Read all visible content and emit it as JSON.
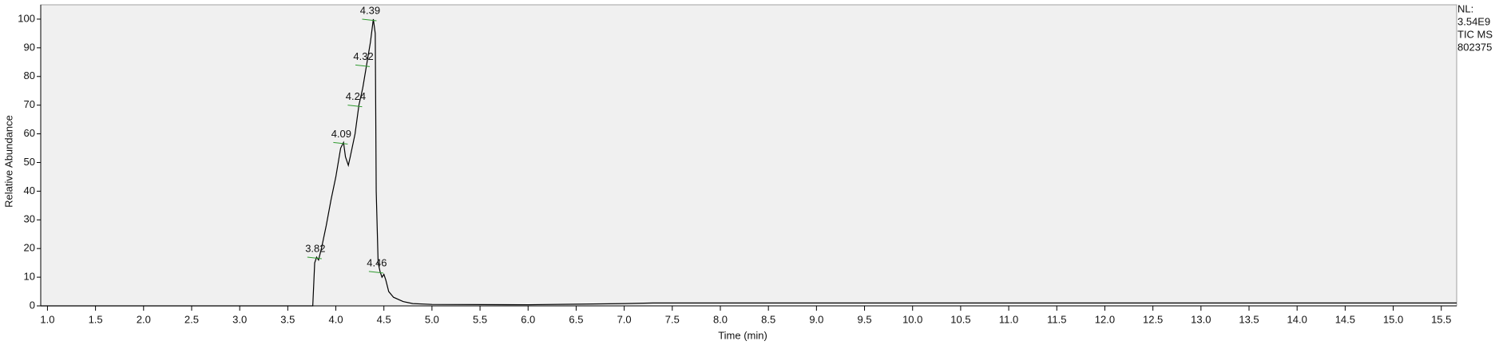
{
  "chart_data": {
    "type": "line",
    "x_label": "Time (min)",
    "y_label": "Relative Abundance",
    "info": [
      "NL:",
      "3.54E9",
      "TIC  MS",
      "802375"
    ],
    "xlim": [
      0.93,
      15.66
    ],
    "ylim": [
      0,
      105
    ],
    "xticks": [
      {
        "value": 1.0,
        "label": "1.0"
      },
      {
        "value": 1.5,
        "label": "1.5"
      },
      {
        "value": 2.0,
        "label": "2.0"
      },
      {
        "value": 2.5,
        "label": "2.5"
      },
      {
        "value": 3.0,
        "label": "3.0"
      },
      {
        "value": 3.5,
        "label": "3.5"
      },
      {
        "value": 4.0,
        "label": "4.0"
      },
      {
        "value": 4.5,
        "label": "4.5"
      },
      {
        "value": 5.0,
        "label": "5.0"
      },
      {
        "value": 5.5,
        "label": "5.5"
      },
      {
        "value": 6.0,
        "label": "6.0"
      },
      {
        "value": 6.5,
        "label": "6.5"
      },
      {
        "value": 7.0,
        "label": "7.0"
      },
      {
        "value": 7.5,
        "label": "7.5"
      },
      {
        "value": 8.0,
        "label": "8.0"
      },
      {
        "value": 8.5,
        "label": "8.5"
      },
      {
        "value": 9.0,
        "label": "9.0"
      },
      {
        "value": 9.5,
        "label": "9.5"
      },
      {
        "value": 10.0,
        "label": "10.0"
      },
      {
        "value": 10.5,
        "label": "10.5"
      },
      {
        "value": 11.0,
        "label": "11.0"
      },
      {
        "value": 11.5,
        "label": "11.5"
      },
      {
        "value": 12.0,
        "label": "12.0"
      },
      {
        "value": 12.5,
        "label": "12.5"
      },
      {
        "value": 13.0,
        "label": "13.0"
      },
      {
        "value": 13.5,
        "label": "13.5"
      },
      {
        "value": 14.0,
        "label": "14.0"
      },
      {
        "value": 14.5,
        "label": "14.5"
      },
      {
        "value": 15.0,
        "label": "15.0"
      },
      {
        "value": 15.5,
        "label": "15.5"
      }
    ],
    "yticks": [
      0,
      10,
      20,
      30,
      40,
      50,
      60,
      70,
      80,
      90,
      100
    ],
    "color": "#000000",
    "x": [
      0.93,
      3.0,
      3.76,
      3.78,
      3.8,
      3.82,
      3.85,
      3.9,
      3.95,
      4.0,
      4.05,
      4.08,
      4.1,
      4.13,
      4.15,
      4.2,
      4.24,
      4.28,
      4.32,
      4.36,
      4.39,
      4.41,
      4.42,
      4.44,
      4.46,
      4.48,
      4.5,
      4.52,
      4.55,
      4.6,
      4.7,
      4.8,
      5.0,
      6.0,
      6.5,
      7.0,
      7.3,
      10.0,
      15.66
    ],
    "values": [
      0,
      0,
      0,
      15,
      17,
      16,
      20,
      28,
      37,
      45,
      55,
      57,
      52,
      49,
      52,
      60,
      70,
      76,
      84,
      92,
      100,
      95,
      40,
      15,
      12,
      10,
      11,
      9,
      5,
      3,
      1.5,
      0.8,
      0.5,
      0.4,
      0.6,
      0.8,
      1.0,
      1.0,
      1.0
    ],
    "peaks": [
      {
        "x": 3.82,
        "y": 17
      },
      {
        "x": 4.09,
        "y": 57
      },
      {
        "x": 4.24,
        "y": 70
      },
      {
        "x": 4.32,
        "y": 84
      },
      {
        "x": 4.39,
        "y": 100
      },
      {
        "x": 4.46,
        "y": 12
      }
    ]
  }
}
